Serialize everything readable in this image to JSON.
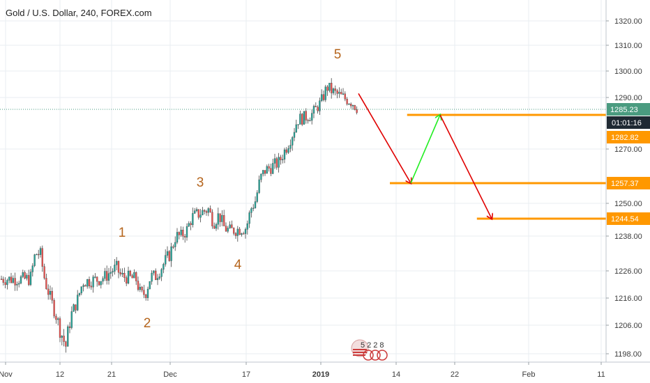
{
  "header": {
    "title": "Gold / U.S. Dollar, 240, FOREX.com"
  },
  "chart_data": {
    "type": "candlestick",
    "title": "Gold / U.S. Dollar, 240, FOREX.com",
    "symbol": "Gold / U.S. Dollar",
    "timeframe": "240",
    "source": "FOREX.com",
    "y_ticks": [
      "1320.00",
      "1310.00",
      "1300.00",
      "1290.00",
      "1270.00",
      "1250.00",
      "1238.00",
      "1226.00",
      "1216.00",
      "1206.00",
      "1198.00"
    ],
    "x_ticks": [
      "Nov",
      "12",
      "21",
      "Dec",
      "17",
      "2019",
      "14",
      "22",
      "Feb",
      "11"
    ],
    "last_price": "1285.23",
    "countdown": "01:01:16",
    "levels": [
      {
        "label": "1282.82",
        "price": 1282.82
      },
      {
        "label": "1257.37",
        "price": 1257.37
      },
      {
        "label": "1244.54",
        "price": 1244.54
      }
    ],
    "wave_labels": [
      "1",
      "2",
      "3",
      "4",
      "5"
    ],
    "price_path": [
      {
        "x": "2018-11-06",
        "y": 1223
      },
      {
        "x": "2018-11-07",
        "y": 1232
      },
      {
        "x": "2018-11-08",
        "y": 1232
      },
      {
        "x": "2018-11-09",
        "y": 1222
      },
      {
        "x": "2018-11-12",
        "y": 1205
      },
      {
        "x": "2018-11-13",
        "y": 1200
      },
      {
        "x": "2018-11-14",
        "y": 1210
      },
      {
        "x": "2018-11-15",
        "y": 1215
      },
      {
        "x": "2018-11-16",
        "y": 1222
      },
      {
        "x": "2018-11-19",
        "y": 1223
      },
      {
        "x": "2018-11-20",
        "y": 1224
      },
      {
        "x": "2018-11-21",
        "y": 1226
      },
      {
        "x": "2018-11-22",
        "y": 1227
      },
      {
        "x": "2018-11-23",
        "y": 1224
      },
      {
        "x": "2018-11-26",
        "y": 1223
      },
      {
        "x": "2018-11-27",
        "y": 1217
      },
      {
        "x": "2018-11-28",
        "y": 1218
      },
      {
        "x": "2018-11-29",
        "y": 1224
      },
      {
        "x": "2018-11-30",
        "y": 1224
      },
      {
        "x": "2018-12-03",
        "y": 1232
      },
      {
        "x": "2018-12-04",
        "y": 1238
      },
      {
        "x": "2018-12-05",
        "y": 1238
      },
      {
        "x": "2018-12-06",
        "y": 1240
      },
      {
        "x": "2018-12-07",
        "y": 1245
      },
      {
        "x": "2018-12-10",
        "y": 1248
      },
      {
        "x": "2018-12-11",
        "y": 1243
      },
      {
        "x": "2018-12-12",
        "y": 1246
      },
      {
        "x": "2018-12-13",
        "y": 1241
      },
      {
        "x": "2018-12-14",
        "y": 1240
      },
      {
        "x": "2018-12-17",
        "y": 1241
      },
      {
        "x": "2018-12-18",
        "y": 1248
      },
      {
        "x": "2018-12-19",
        "y": 1251
      },
      {
        "x": "2018-12-20",
        "y": 1259
      },
      {
        "x": "2018-12-21",
        "y": 1262
      },
      {
        "x": "2018-12-24",
        "y": 1265
      },
      {
        "x": "2018-12-26",
        "y": 1272
      },
      {
        "x": "2018-12-27",
        "y": 1276
      },
      {
        "x": "2018-12-28",
        "y": 1281
      },
      {
        "x": "2018-12-31",
        "y": 1283
      },
      {
        "x": "2019-01-02",
        "y": 1288
      },
      {
        "x": "2019-01-03",
        "y": 1294
      },
      {
        "x": "2019-01-04",
        "y": 1292
      },
      {
        "x": "2019-01-07",
        "y": 1288
      },
      {
        "x": "2019-01-08",
        "y": 1285
      }
    ],
    "projection_path": [
      {
        "x": "2019-01-08",
        "y": 1291.5
      },
      {
        "x": "2019-01-16",
        "y": 1257.37
      },
      {
        "x": "2019-01-20",
        "y": 1282.82
      },
      {
        "x": "2019-01-27",
        "y": 1244.54
      }
    ],
    "colors": {
      "bull": "#26a69a",
      "bear": "#ef5350",
      "level": "#ff9800",
      "price_tag": "#4a9b80",
      "countdown_tag": "#1f2933",
      "arrow_down": "#e00000",
      "arrow_up": "#22ee22",
      "wave_label": "#b5651d"
    }
  },
  "logo": {
    "text": "5228"
  }
}
